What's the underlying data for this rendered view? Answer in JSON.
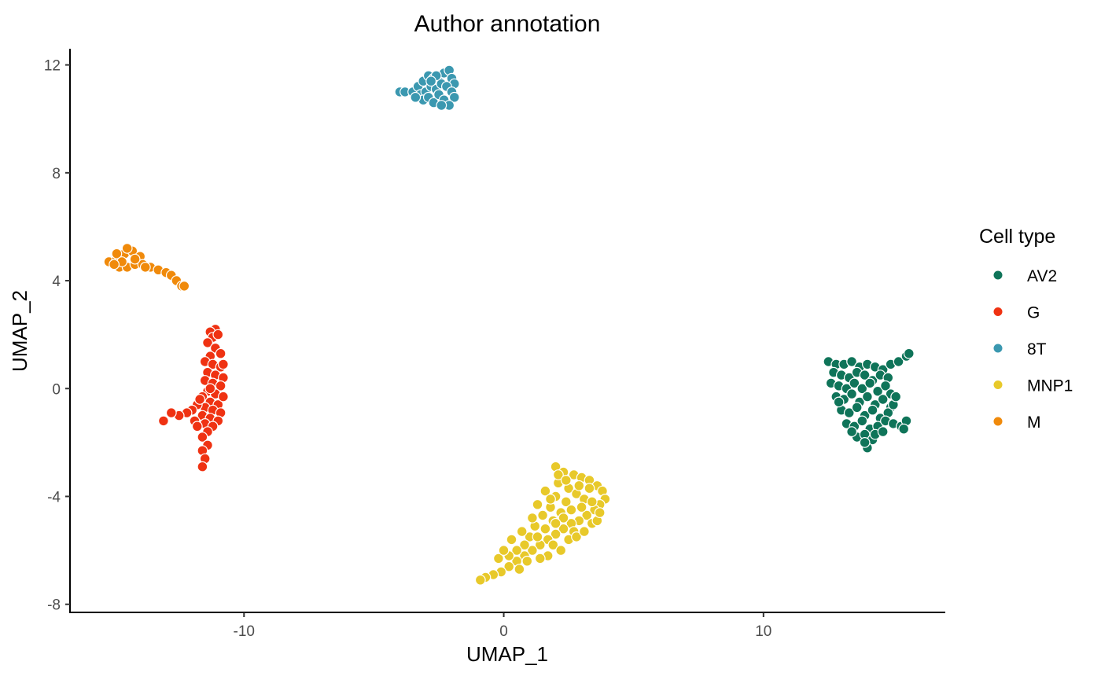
{
  "chart_data": {
    "type": "scatter",
    "title": "Author annotation",
    "xlabel": "UMAP_1",
    "ylabel": "UMAP_2",
    "xlim": [
      -16.7,
      17.0
    ],
    "ylim": [
      -8.3,
      12.6
    ],
    "xticks": [
      -10,
      0,
      10
    ],
    "yticks": [
      -8,
      -4,
      0,
      4,
      8,
      12
    ],
    "xtick_labels": [
      "-10",
      "0",
      "10"
    ],
    "ytick_labels": [
      "-8",
      "-4",
      "0",
      "4",
      "8",
      "12"
    ],
    "grid": false,
    "legend": {
      "title": "Cell type",
      "position": "right"
    },
    "series": [
      {
        "name": "AV2",
        "color": "#0f7459",
        "points": [
          [
            12.5,
            1.0
          ],
          [
            12.8,
            0.9
          ],
          [
            13.1,
            0.9
          ],
          [
            13.4,
            1.0
          ],
          [
            13.7,
            0.8
          ],
          [
            14.0,
            0.9
          ],
          [
            14.3,
            0.8
          ],
          [
            14.6,
            0.7
          ],
          [
            14.9,
            0.9
          ],
          [
            15.2,
            1.0
          ],
          [
            15.5,
            1.2
          ],
          [
            15.6,
            1.3
          ],
          [
            12.7,
            0.6
          ],
          [
            13.0,
            0.5
          ],
          [
            13.3,
            0.4
          ],
          [
            13.6,
            0.6
          ],
          [
            13.9,
            0.5
          ],
          [
            14.2,
            0.3
          ],
          [
            14.5,
            0.5
          ],
          [
            14.8,
            0.4
          ],
          [
            12.6,
            0.2
          ],
          [
            12.9,
            0.1
          ],
          [
            13.2,
            0.0
          ],
          [
            13.5,
            0.2
          ],
          [
            13.8,
            0.0
          ],
          [
            14.1,
            0.2
          ],
          [
            14.4,
            -0.1
          ],
          [
            14.7,
            0.1
          ],
          [
            14.9,
            -0.2
          ],
          [
            12.8,
            -0.3
          ],
          [
            13.1,
            -0.4
          ],
          [
            13.4,
            -0.2
          ],
          [
            13.7,
            -0.5
          ],
          [
            14.0,
            -0.3
          ],
          [
            14.3,
            -0.6
          ],
          [
            14.6,
            -0.4
          ],
          [
            14.9,
            -0.7
          ],
          [
            13.0,
            -0.8
          ],
          [
            13.3,
            -0.9
          ],
          [
            13.6,
            -0.7
          ],
          [
            13.9,
            -1.0
          ],
          [
            14.2,
            -0.8
          ],
          [
            14.5,
            -1.1
          ],
          [
            14.8,
            -0.9
          ],
          [
            13.2,
            -1.3
          ],
          [
            13.5,
            -1.4
          ],
          [
            13.8,
            -1.2
          ],
          [
            14.1,
            -1.5
          ],
          [
            14.4,
            -1.4
          ],
          [
            14.7,
            -1.2
          ],
          [
            15.0,
            -1.3
          ],
          [
            15.3,
            -1.4
          ],
          [
            15.5,
            -1.2
          ],
          [
            15.4,
            -1.5
          ],
          [
            13.6,
            -1.8
          ],
          [
            13.9,
            -1.7
          ],
          [
            14.2,
            -1.9
          ],
          [
            14.0,
            -2.2
          ],
          [
            13.9,
            -2.0
          ],
          [
            15.0,
            -0.6
          ],
          [
            15.1,
            -0.3
          ],
          [
            14.3,
            -1.7
          ],
          [
            13.4,
            -1.6
          ],
          [
            12.9,
            -0.5
          ],
          [
            14.6,
            -1.6
          ]
        ]
      },
      {
        "name": "G",
        "color": "#ef3212",
        "points": [
          [
            -11.1,
            2.2
          ],
          [
            -11.3,
            2.1
          ],
          [
            -11.2,
            1.9
          ],
          [
            -11.0,
            2.0
          ],
          [
            -11.4,
            1.7
          ],
          [
            -11.1,
            1.5
          ],
          [
            -10.9,
            1.3
          ],
          [
            -11.3,
            1.2
          ],
          [
            -11.5,
            1.0
          ],
          [
            -11.2,
            0.9
          ],
          [
            -10.9,
            0.8
          ],
          [
            -11.4,
            0.6
          ],
          [
            -11.1,
            0.5
          ],
          [
            -10.8,
            0.4
          ],
          [
            -11.5,
            0.3
          ],
          [
            -11.2,
            0.2
          ],
          [
            -10.9,
            0.1
          ],
          [
            -11.4,
            -0.1
          ],
          [
            -11.1,
            -0.2
          ],
          [
            -11.6,
            -0.3
          ],
          [
            -11.3,
            -0.5
          ],
          [
            -11.0,
            -0.6
          ],
          [
            -11.5,
            -0.7
          ],
          [
            -11.2,
            -0.8
          ],
          [
            -10.9,
            -0.9
          ],
          [
            -11.6,
            -1.0
          ],
          [
            -11.3,
            -1.1
          ],
          [
            -11.0,
            -1.2
          ],
          [
            -11.5,
            -1.3
          ],
          [
            -11.2,
            -1.4
          ],
          [
            -11.4,
            -1.6
          ],
          [
            -11.6,
            -1.8
          ],
          [
            -11.4,
            -2.1
          ],
          [
            -11.6,
            -2.3
          ],
          [
            -11.5,
            -2.6
          ],
          [
            -11.6,
            -2.9
          ],
          [
            -11.8,
            -0.6
          ],
          [
            -12.0,
            -0.8
          ],
          [
            -12.2,
            -0.9
          ],
          [
            -12.5,
            -1.0
          ],
          [
            -12.8,
            -0.9
          ],
          [
            -13.1,
            -1.2
          ],
          [
            -11.9,
            -1.2
          ],
          [
            -11.7,
            -0.4
          ],
          [
            -10.8,
            0.9
          ],
          [
            -10.8,
            -0.3
          ],
          [
            -11.8,
            -1.4
          ],
          [
            -11.3,
            0.0
          ]
        ]
      },
      {
        "name": "8T",
        "color": "#3b98b0",
        "points": [
          [
            -4.0,
            11.0
          ],
          [
            -3.8,
            11.0
          ],
          [
            -3.5,
            11.0
          ],
          [
            -3.3,
            11.2
          ],
          [
            -3.1,
            11.4
          ],
          [
            -2.9,
            11.6
          ],
          [
            -2.7,
            11.5
          ],
          [
            -2.5,
            11.6
          ],
          [
            -2.3,
            11.7
          ],
          [
            -2.1,
            11.8
          ],
          [
            -2.0,
            11.5
          ],
          [
            -1.9,
            11.3
          ],
          [
            -3.2,
            10.9
          ],
          [
            -3.0,
            11.0
          ],
          [
            -2.8,
            11.2
          ],
          [
            -2.6,
            11.1
          ],
          [
            -2.4,
            11.3
          ],
          [
            -2.2,
            11.2
          ],
          [
            -2.0,
            11.0
          ],
          [
            -1.9,
            10.8
          ],
          [
            -3.1,
            10.7
          ],
          [
            -2.9,
            10.8
          ],
          [
            -2.7,
            10.6
          ],
          [
            -2.5,
            10.9
          ],
          [
            -2.3,
            10.7
          ],
          [
            -2.1,
            10.5
          ],
          [
            -2.6,
            11.6
          ],
          [
            -2.8,
            11.4
          ],
          [
            -3.4,
            10.8
          ],
          [
            -2.4,
            10.5
          ]
        ]
      },
      {
        "name": "MNP1",
        "color": "#e8c92a",
        "points": [
          [
            2.0,
            -2.9
          ],
          [
            2.3,
            -3.1
          ],
          [
            2.7,
            -3.2
          ],
          [
            3.0,
            -3.3
          ],
          [
            3.3,
            -3.4
          ],
          [
            3.6,
            -3.6
          ],
          [
            3.8,
            -3.8
          ],
          [
            3.9,
            -4.1
          ],
          [
            3.7,
            -4.3
          ],
          [
            3.5,
            -4.5
          ],
          [
            3.2,
            -4.7
          ],
          [
            2.9,
            -4.9
          ],
          [
            2.6,
            -5.0
          ],
          [
            2.3,
            -5.2
          ],
          [
            2.0,
            -5.4
          ],
          [
            1.7,
            -5.6
          ],
          [
            1.4,
            -5.8
          ],
          [
            1.1,
            -6.0
          ],
          [
            0.8,
            -6.2
          ],
          [
            0.5,
            -6.4
          ],
          [
            0.2,
            -6.6
          ],
          [
            -0.1,
            -6.8
          ],
          [
            -0.4,
            -6.9
          ],
          [
            -0.7,
            -7.0
          ],
          [
            -0.9,
            -7.1
          ],
          [
            2.1,
            -3.5
          ],
          [
            2.5,
            -3.7
          ],
          [
            2.8,
            -3.9
          ],
          [
            3.1,
            -4.1
          ],
          [
            2.4,
            -4.2
          ],
          [
            2.0,
            -4.0
          ],
          [
            1.8,
            -4.4
          ],
          [
            2.2,
            -4.6
          ],
          [
            2.6,
            -4.5
          ],
          [
            3.0,
            -4.4
          ],
          [
            3.4,
            -4.2
          ],
          [
            1.5,
            -4.7
          ],
          [
            1.9,
            -4.9
          ],
          [
            2.3,
            -4.8
          ],
          [
            2.7,
            -5.3
          ],
          [
            1.2,
            -5.1
          ],
          [
            1.6,
            -5.2
          ],
          [
            1.0,
            -5.5
          ],
          [
            1.3,
            -5.5
          ],
          [
            0.8,
            -5.8
          ],
          [
            0.5,
            -6.0
          ],
          [
            0.2,
            -6.2
          ],
          [
            1.9,
            -5.8
          ],
          [
            2.2,
            -6.0
          ],
          [
            1.7,
            -6.2
          ],
          [
            1.4,
            -6.3
          ],
          [
            0.9,
            -6.4
          ],
          [
            2.5,
            -5.6
          ],
          [
            2.8,
            -5.5
          ],
          [
            3.1,
            -5.3
          ],
          [
            3.4,
            -5.0
          ],
          [
            3.6,
            -4.9
          ],
          [
            1.1,
            -4.8
          ],
          [
            0.7,
            -5.3
          ],
          [
            2.1,
            -3.2
          ],
          [
            2.4,
            -3.4
          ],
          [
            3.3,
            -3.7
          ],
          [
            1.6,
            -3.8
          ],
          [
            1.8,
            -4.1
          ],
          [
            0.3,
            -5.6
          ],
          [
            -0.2,
            -6.3
          ],
          [
            0.0,
            -6.0
          ],
          [
            2.0,
            -5.0
          ],
          [
            2.9,
            -3.6
          ],
          [
            1.3,
            -4.3
          ],
          [
            0.6,
            -6.7
          ],
          [
            3.7,
            -4.6
          ]
        ]
      },
      {
        "name": "M",
        "color": "#f08a0b",
        "points": [
          [
            -15.2,
            4.7
          ],
          [
            -14.9,
            4.8
          ],
          [
            -14.6,
            5.0
          ],
          [
            -14.3,
            5.1
          ],
          [
            -14.0,
            4.9
          ],
          [
            -14.8,
            4.5
          ],
          [
            -14.5,
            4.5
          ],
          [
            -14.2,
            4.6
          ],
          [
            -13.9,
            4.6
          ],
          [
            -13.6,
            4.5
          ],
          [
            -13.3,
            4.4
          ],
          [
            -13.0,
            4.3
          ],
          [
            -12.8,
            4.2
          ],
          [
            -12.6,
            4.0
          ],
          [
            -12.4,
            3.8
          ],
          [
            -14.9,
            5.0
          ],
          [
            -14.5,
            5.2
          ],
          [
            -14.2,
            4.8
          ],
          [
            -13.8,
            4.5
          ],
          [
            -14.7,
            4.7
          ],
          [
            -15.0,
            4.6
          ],
          [
            -12.3,
            3.8
          ]
        ]
      }
    ]
  }
}
